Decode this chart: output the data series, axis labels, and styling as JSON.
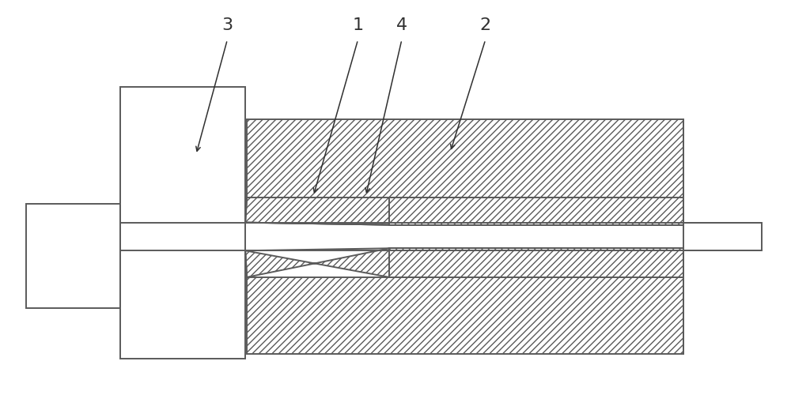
{
  "bg_color": "#ffffff",
  "line_color": "#5a5a5a",
  "label_color": "#303030",
  "fig_width": 10.0,
  "fig_height": 5.0,
  "dpi": 100,
  "label_fontsize": 16
}
